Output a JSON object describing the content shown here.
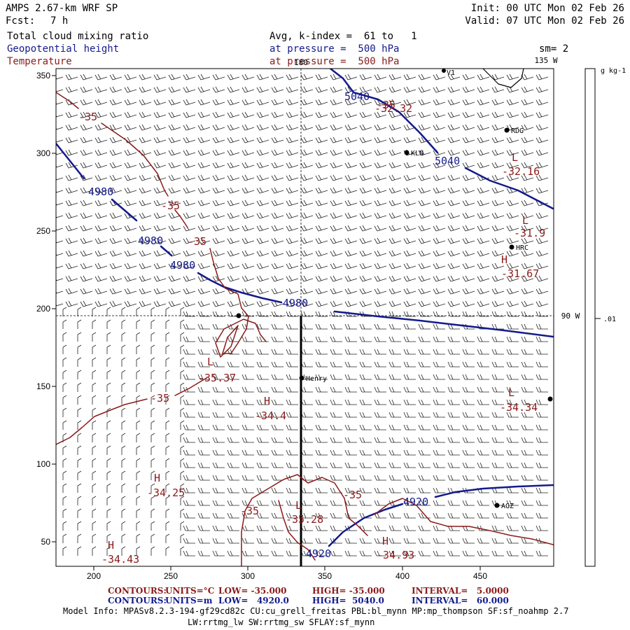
{
  "header": {
    "title": "AMPS 2.67-km WRF SP",
    "fcst_label": "Fcst:",
    "fcst_value": "7 h",
    "init": "Init: 00 UTC Mon 02 Feb 26",
    "valid": "Valid: 07 UTC Mon 02 Feb 26",
    "field1": "Total cloud mixing ratio",
    "field2": "Geopotential height",
    "field3": "Temperature",
    "avg": "Avg, k-index =  61 to   1",
    "pressure1": "at pressure =  500 hPa",
    "pressure2": "at pressure =  500 hPa",
    "smoothing": "sm= 2"
  },
  "map": {
    "x_ticks": [
      "200",
      "250",
      "300",
      "350",
      "400",
      "450"
    ],
    "y_ticks": [
      "350",
      "300",
      "250",
      "200",
      "150",
      "100",
      "50"
    ],
    "longitudes": {
      "top_center": "180",
      "top_right": "135 W",
      "right": "90 W"
    },
    "stations": [
      "RDG",
      "KLN",
      "HRC",
      "Henry",
      "AGZ"
    ],
    "height_labels": [
      "5040",
      "5040",
      "4980",
      "4980",
      "4980",
      "4980",
      "4920",
      "4920"
    ],
    "temp_labels": [
      "-35",
      "-35",
      "-35",
      "-35",
      "-35",
      "-35",
      "-35"
    ],
    "extrema": [
      {
        "type": "L",
        "value": "-32.32"
      },
      {
        "type": "L",
        "value": "-32.16"
      },
      {
        "type": "L",
        "value": "-31.9"
      },
      {
        "type": "H",
        "value": "-31.67"
      },
      {
        "type": "L",
        "value": "-35.37"
      },
      {
        "type": "H",
        "value": "-34.4"
      },
      {
        "type": "L",
        "value": "-34.34"
      },
      {
        "type": "H",
        "value": "-34.25"
      },
      {
        "type": "L",
        "value": "-35.28"
      },
      {
        "type": "H",
        "value": "-34.43"
      },
      {
        "type": "H",
        "value": "-34.93"
      }
    ]
  },
  "colorbar": {
    "units": "g kg-1",
    "tick": ".01"
  },
  "footer": {
    "t_contours": "CONTOURS:",
    "t_units": "UNITS=°C",
    "t_low": "LOW= -35.000",
    "t_high": "HIGH= -35.000",
    "t_interval": "INTERVAL=   5.0000",
    "h_contours": "CONTOURS:",
    "h_units": "UNITS=m",
    "h_low": "LOW=   4920.0",
    "h_high": "HIGH=  5040.0",
    "h_interval": "INTERVAL=   60.000",
    "model_info": "Model Info: MPASv8.2.3-194-gf29cd82c CU:cu_grell_freitas PBL:bl_mynn MP:mp_thompson SF:sf_noahmp 2.7",
    "model_info2": "LW:rrtmg_lw SW:rrtmg_sw SFLAY:sf_mynn"
  },
  "colors": {
    "height": "#141a8c",
    "temperature": "#8b1a1a"
  }
}
